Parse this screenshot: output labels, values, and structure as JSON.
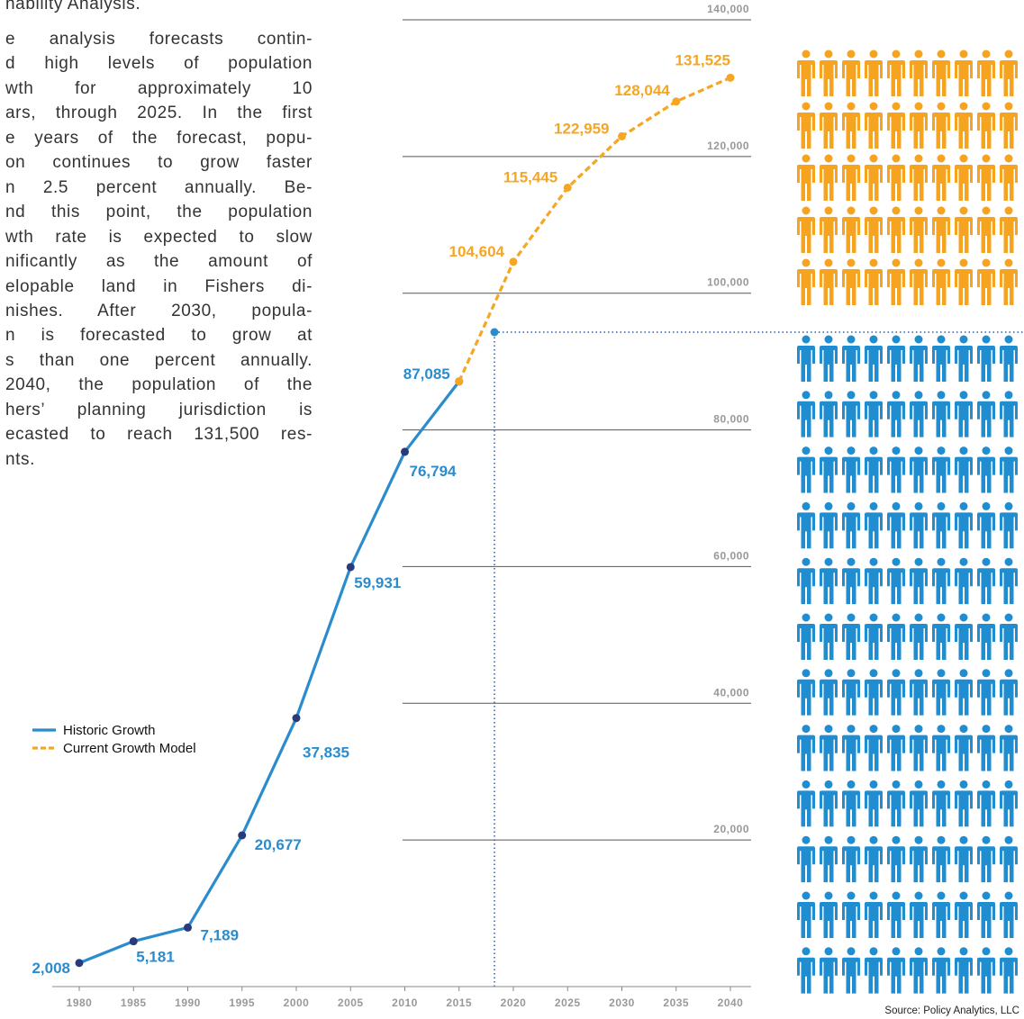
{
  "text_lines": [
    "nability Analysis.",
    "e analysis forecasts contin-",
    "d high levels of population",
    "wth for approximately 10",
    "ars, through 2025. In the first",
    "e years of the forecast, popu-",
    "on continues to grow faster",
    "n 2.5 percent annually. Be-",
    "nd this point, the population",
    "wth rate is expected to slow",
    "nificantly as the amount of",
    "elopable land in Fishers di-",
    "nishes. After 2030, popula-",
    "n is forecasted to grow at",
    "s than one percent annually.",
    "2040, the population of the",
    "hers’ planning jurisdiction is",
    "ecasted to reach 131,500 res-",
    "nts."
  ],
  "chart_data": {
    "type": "line",
    "x": [
      1980,
      1985,
      1990,
      1995,
      2000,
      2005,
      2010,
      2015,
      2020,
      2025,
      2030,
      2035,
      2040
    ],
    "xlim": [
      1980,
      2040
    ],
    "xticks": [
      1980,
      1985,
      1990,
      1995,
      2000,
      2005,
      2010,
      2015,
      2020,
      2025,
      2030,
      2035,
      2040
    ],
    "ylim": [
      0,
      140000
    ],
    "yticks": [
      {
        "value": 20000,
        "label": "20,000"
      },
      {
        "value": 40000,
        "label": "40,000"
      },
      {
        "value": 60000,
        "label": "60,000"
      },
      {
        "value": 80000,
        "label": "80,000"
      },
      {
        "value": 100000,
        "label": "100,000"
      },
      {
        "value": 120000,
        "label": "120,000"
      },
      {
        "value": 140000,
        "label": "140,000"
      }
    ],
    "grid": true,
    "series": [
      {
        "name": "Historic Growth",
        "color": "#2b8ccd",
        "marker_color": "#2a3a7a",
        "dashed": false,
        "values": [
          2008,
          5181,
          7189,
          20677,
          37835,
          59931,
          76794,
          87085,
          null,
          null,
          null,
          null,
          null
        ],
        "value_labels": [
          "2,008",
          "5,181",
          "7,189",
          "20,677",
          "37,835",
          "59,931",
          "76,794",
          "87,085",
          null,
          null,
          null,
          null,
          null
        ]
      },
      {
        "name": "Current Growth Model",
        "color": "#f5a623",
        "marker_color": "#f5a623",
        "dashed": true,
        "values": [
          null,
          null,
          null,
          null,
          null,
          null,
          null,
          87085,
          104604,
          115445,
          122959,
          128044,
          131525
        ],
        "value_labels": [
          null,
          null,
          null,
          null,
          null,
          null,
          null,
          null,
          "104,604",
          "115,445",
          "122,959",
          "128,044",
          "131,525"
        ]
      }
    ],
    "source": "Source: Policy Analytics, LLC"
  }
}
